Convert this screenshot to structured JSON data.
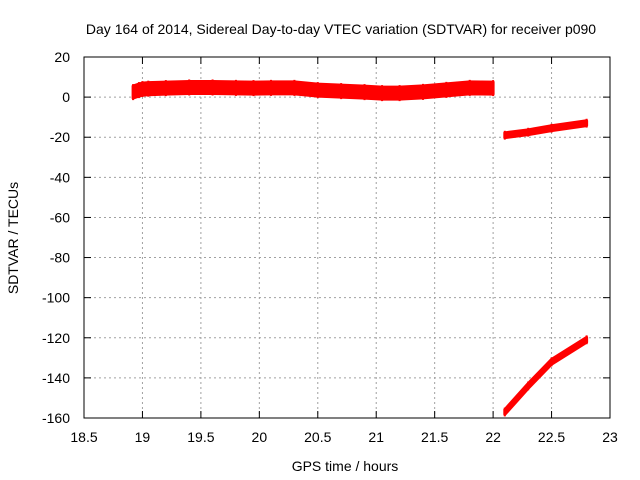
{
  "chart_data": {
    "type": "scatter",
    "title": "Day 164 of 2014, Sidereal Day-to-day VTEC variation (SDTVAR) for receiver p090",
    "xlabel": "GPS time / hours",
    "ylabel": "SDTVAR / TECUs",
    "xlim": [
      18.5,
      23
    ],
    "ylim": [
      -160,
      20
    ],
    "xticks": [
      18.5,
      19,
      19.5,
      20,
      20.5,
      21,
      21.5,
      22,
      22.5,
      23
    ],
    "yticks": [
      20,
      0,
      -20,
      -40,
      -60,
      -80,
      -100,
      -120,
      -140,
      -160
    ],
    "grid": true,
    "legend": "none",
    "series": [
      {
        "color": "#ff0000",
        "segments": [
          {
            "x": [
              18.92,
              18.97,
              19.0,
              19.05,
              19.2,
              19.4,
              19.6,
              19.8,
              19.95,
              20.1,
              20.3,
              20.5,
              20.7,
              20.9,
              21.05,
              21.2,
              21.4,
              21.6,
              21.8,
              22.0
            ],
            "y": [
              2.5,
              3.5,
              4,
              4.2,
              4.5,
              4.8,
              4.8,
              4.6,
              4.5,
              4.6,
              4.6,
              3.5,
              3,
              2.5,
              2,
              2,
              2.6,
              3.6,
              4.6,
              4.5
            ],
            "spread": 3
          },
          {
            "x": [
              22.1,
              22.3,
              22.5,
              22.8
            ],
            "y": [
              -19,
              -17.5,
              -15.5,
              -13
            ],
            "spread": 1.2
          },
          {
            "x": [
              22.1,
              22.3,
              22.5,
              22.8
            ],
            "y": [
              -157,
              -144,
              -132,
              -121
            ],
            "spread": 1.2
          }
        ]
      }
    ]
  }
}
